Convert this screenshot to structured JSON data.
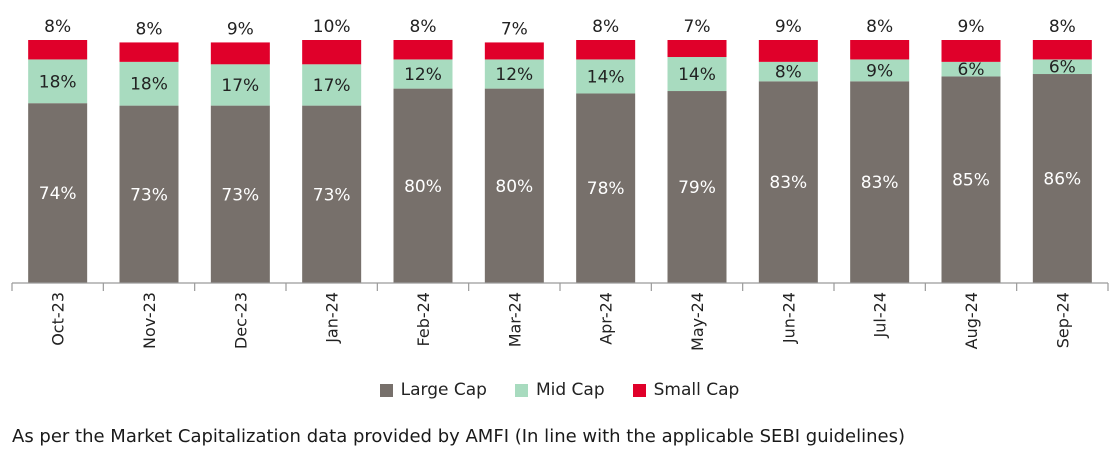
{
  "chart_data": {
    "type": "bar",
    "stacked": true,
    "normalized_percent": true,
    "categories": [
      "Oct-23",
      "Nov-23",
      "Dec-23",
      "Jan-24",
      "Feb-24",
      "Mar-24",
      "Apr-24",
      "May-24",
      "Jun-24",
      "Jul-24",
      "Aug-24",
      "Sep-24"
    ],
    "series": [
      {
        "name": "Large Cap",
        "color": "#77706b",
        "values": [
          74,
          73,
          73,
          73,
          80,
          80,
          78,
          79,
          83,
          83,
          85,
          86
        ],
        "labels": [
          "74%",
          "73%",
          "73%",
          "73%",
          "80%",
          "80%",
          "78%",
          "79%",
          "83%",
          "83%",
          "85%",
          "86%"
        ]
      },
      {
        "name": "Mid Cap",
        "color": "#a8dbbf",
        "values": [
          18,
          18,
          17,
          17,
          12,
          12,
          14,
          14,
          8,
          9,
          6,
          6
        ],
        "labels": [
          "18%",
          "18%",
          "17%",
          "17%",
          "12%",
          "12%",
          "14%",
          "14%",
          "8%",
          "9%",
          "6%",
          "6%"
        ]
      },
      {
        "name": "Small Cap",
        "color": "#e0002a",
        "values": [
          8,
          8,
          9,
          10,
          8,
          7,
          8,
          7,
          9,
          8,
          9,
          8
        ],
        "labels": [
          "8%",
          "8%",
          "9%",
          "10%",
          "8%",
          "7%",
          "8%",
          "7%",
          "9%",
          "8%",
          "9%",
          "8%"
        ]
      }
    ],
    "title": "",
    "xlabel": "",
    "ylabel": "",
    "ylim": [
      0,
      100
    ],
    "grid": false,
    "legend_position": "bottom"
  },
  "footnote": "As per the Market Capitalization data provided by AMFI (In line with the applicable SEBI guidelines)"
}
